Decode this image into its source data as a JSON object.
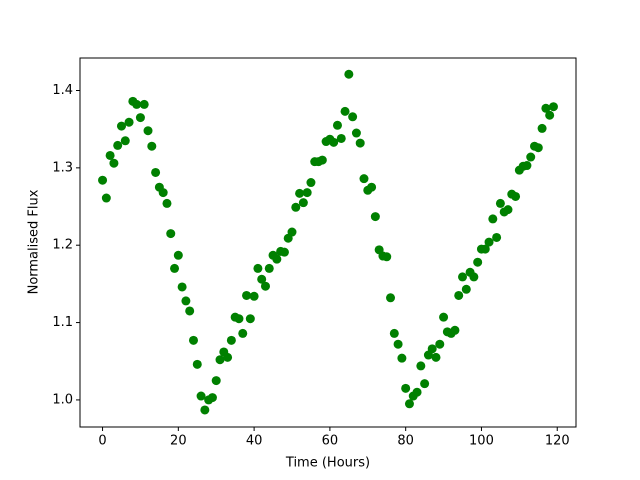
{
  "chart_data": {
    "type": "scatter",
    "x_label": "Time (Hours)",
    "y_label": "Normalised Flux",
    "series": [
      {
        "color": "#008000",
        "x": [
          0,
          1,
          2,
          3,
          4,
          5,
          6,
          7,
          8,
          9,
          10,
          11,
          12,
          13,
          14,
          15,
          16,
          17,
          18,
          19,
          20,
          21,
          22,
          23,
          24,
          25,
          26,
          27,
          28,
          29,
          30,
          31,
          32,
          33,
          34,
          35,
          36,
          37,
          38,
          39,
          40,
          41,
          42,
          43,
          44,
          45,
          46,
          47,
          48,
          49,
          50,
          51,
          52,
          53,
          54,
          55,
          56,
          57,
          58,
          59,
          60,
          61,
          62,
          63,
          64,
          65,
          66,
          67,
          68,
          69,
          70,
          71,
          72,
          73,
          74,
          75,
          76,
          77,
          78,
          79,
          80,
          81,
          82,
          83,
          84,
          85,
          86,
          87,
          88,
          89,
          90,
          91,
          92,
          93,
          94,
          95,
          96,
          97,
          98,
          99,
          100,
          101,
          102,
          103,
          104,
          105,
          106,
          107,
          108,
          109,
          110,
          111,
          112,
          113,
          114,
          115,
          116,
          117,
          118,
          119
        ],
        "values": [
          1.284,
          1.261,
          1.316,
          1.306,
          1.329,
          1.354,
          1.335,
          1.359,
          1.386,
          1.382,
          1.365,
          1.382,
          1.348,
          1.328,
          1.294,
          1.275,
          1.268,
          1.254,
          1.215,
          1.17,
          1.187,
          1.146,
          1.128,
          1.115,
          1.077,
          1.046,
          1.005,
          0.987,
          1.0,
          1.003,
          1.025,
          1.052,
          1.062,
          1.055,
          1.077,
          1.107,
          1.105,
          1.086,
          1.135,
          1.105,
          1.134,
          1.17,
          1.156,
          1.147,
          1.17,
          1.187,
          1.182,
          1.192,
          1.191,
          1.209,
          1.217,
          1.249,
          1.267,
          1.255,
          1.268,
          1.281,
          1.308,
          1.308,
          1.31,
          1.334,
          1.337,
          1.333,
          1.355,
          1.338,
          1.373,
          1.421,
          1.366,
          1.345,
          1.332,
          1.286,
          1.271,
          1.275,
          1.237,
          1.194,
          1.186,
          1.185,
          1.132,
          1.086,
          1.072,
          1.054,
          1.015,
          0.995,
          1.005,
          1.01,
          1.044,
          1.021,
          1.058,
          1.066,
          1.055,
          1.072,
          1.107,
          1.088,
          1.086,
          1.09,
          1.135,
          1.159,
          1.143,
          1.165,
          1.159,
          1.178,
          1.195,
          1.195,
          1.204,
          1.234,
          1.21,
          1.254,
          1.243,
          1.246,
          1.266,
          1.263,
          1.297,
          1.302,
          1.303,
          1.314,
          1.328,
          1.326,
          1.351,
          1.377,
          1.368,
          1.379
        ]
      }
    ],
    "xlim": [
      -5.95,
      124.95
    ],
    "ylim": [
      0.965,
      1.442
    ],
    "xticks": [
      0,
      20,
      40,
      60,
      80,
      100,
      120
    ],
    "yticks": [
      {
        "value": 1.0,
        "label": "1.0"
      },
      1.1,
      1.2,
      1.3,
      1.4
    ]
  }
}
